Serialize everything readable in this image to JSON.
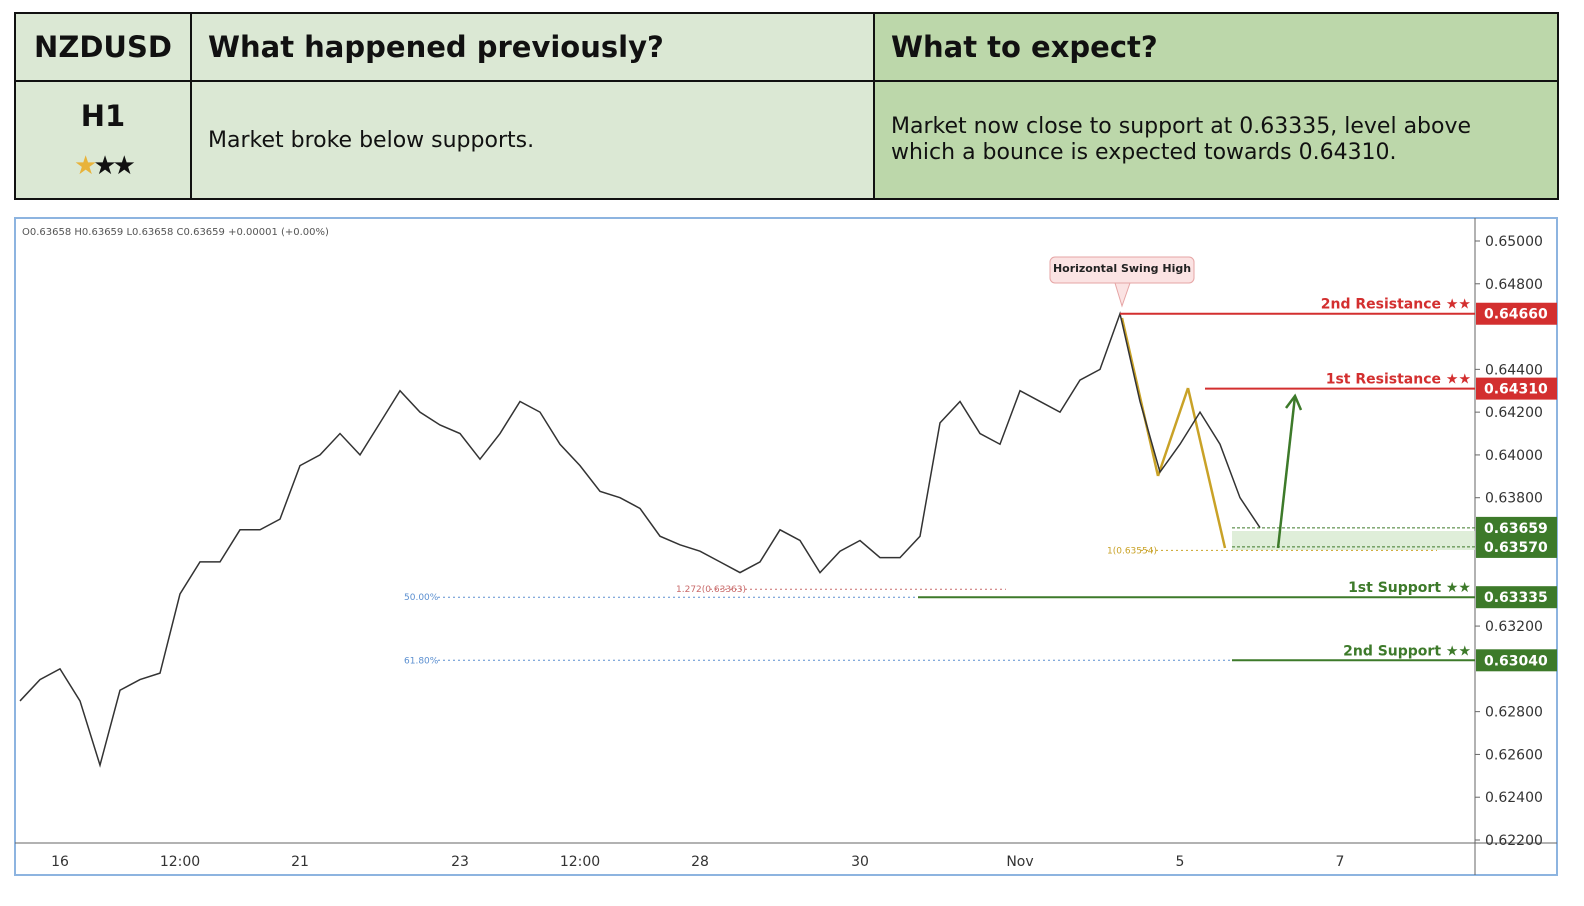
{
  "header": {
    "symbol": "NZDUSD",
    "timeframe": "H1",
    "col2_title": "What happened previously?",
    "col3_title": "What to expect?",
    "col2_text": "Market broke below supports.",
    "col3_text": "Market now close to support at 0.63335, level above which a bounce is expected towards 0.64310."
  },
  "chart_data": {
    "type": "line",
    "ohlc": "O0.63658  H0.63659  L0.63658  C0.63659  +0.00001 (+0.00%)",
    "annotation": "Horizontal Swing High",
    "fib_labels": [
      "50.00%",
      "61.80%",
      "1(0.63554)",
      "1.272(0.63363)"
    ],
    "categories": [
      null,
      null,
      "16",
      null,
      null,
      null,
      null,
      null,
      "12:00",
      null,
      null,
      null,
      null,
      null,
      "21",
      null,
      null,
      null,
      null,
      null,
      null,
      null,
      "23",
      null,
      null,
      null,
      null,
      null,
      "12:00",
      null,
      null,
      null,
      null,
      null,
      "28",
      null,
      null,
      null,
      null,
      null,
      null,
      null,
      "30",
      null,
      null,
      null,
      null,
      null,
      null,
      null,
      "Nov",
      null,
      null,
      null,
      null,
      null,
      null,
      null,
      "5",
      null,
      null,
      null,
      null,
      null,
      null,
      null,
      "7",
      null,
      null,
      null,
      null,
      null,
      null
    ],
    "series": [
      {
        "name": "NZDUSD",
        "color": "#333333",
        "values": [
          0.6285,
          0.6295,
          0.63,
          0.6285,
          0.6255,
          0.629,
          0.6295,
          0.6298,
          0.6335,
          0.635,
          0.635,
          0.6365,
          0.6365,
          0.637,
          0.6395,
          0.64,
          0.641,
          0.64,
          0.6415,
          0.643,
          0.642,
          0.6414,
          0.641,
          0.6398,
          0.641,
          0.6425,
          0.642,
          0.6405,
          0.6395,
          0.6383,
          0.638,
          0.6375,
          0.6362,
          0.6358,
          0.6355,
          0.635,
          0.6345,
          0.635,
          0.6365,
          0.636,
          0.6345,
          0.6355,
          0.636,
          0.6352,
          0.6352,
          0.6362,
          0.6415,
          0.6425,
          0.641,
          0.6405,
          0.643,
          0.6425,
          0.642,
          0.6435,
          0.644,
          0.6466,
          0.6425,
          0.6392,
          0.6405,
          0.642,
          0.6405,
          0.638,
          0.6366,
          null,
          null,
          null,
          null,
          null,
          null,
          null,
          null,
          null,
          null
        ]
      }
    ],
    "levels": [
      {
        "name": "2nd Resistance ★★",
        "value": 0.6466,
        "label": "0.64660",
        "color": "#d32f2f"
      },
      {
        "name": "1st Resistance ★★",
        "value": 0.6431,
        "label": "0.64310",
        "color": "#d32f2f"
      },
      {
        "value": 0.63659,
        "label": "0.63659",
        "color": "#3d7a2a"
      },
      {
        "value": 0.6357,
        "label": "0.63570",
        "color": "#3d7a2a"
      },
      {
        "name": "1st Support ★★",
        "value": 0.63335,
        "label": "0.63335",
        "color": "#3d7a2a"
      },
      {
        "name": "2nd Support ★★",
        "value": 0.6304,
        "label": "0.63040",
        "color": "#3d7a2a"
      }
    ],
    "ylim": [
      0.622,
      0.65
    ],
    "yticks": [
      {
        "value": 0.65,
        "label": "0.65000"
      },
      {
        "value": 0.648,
        "label": "0.64800"
      },
      {
        "value": 0.644,
        "label": "0.64400"
      },
      {
        "value": 0.642,
        "label": "0.64200"
      },
      {
        "value": 0.64,
        "label": "0.64000"
      },
      {
        "value": 0.638,
        "label": "0.63800"
      },
      {
        "value": 0.632,
        "label": "0.63200"
      },
      {
        "value": 0.628,
        "label": "0.62800"
      },
      {
        "value": 0.626,
        "label": "0.62600"
      },
      {
        "value": 0.624,
        "label": "0.62400"
      },
      {
        "value": 0.622,
        "label": "0.62200"
      }
    ]
  }
}
